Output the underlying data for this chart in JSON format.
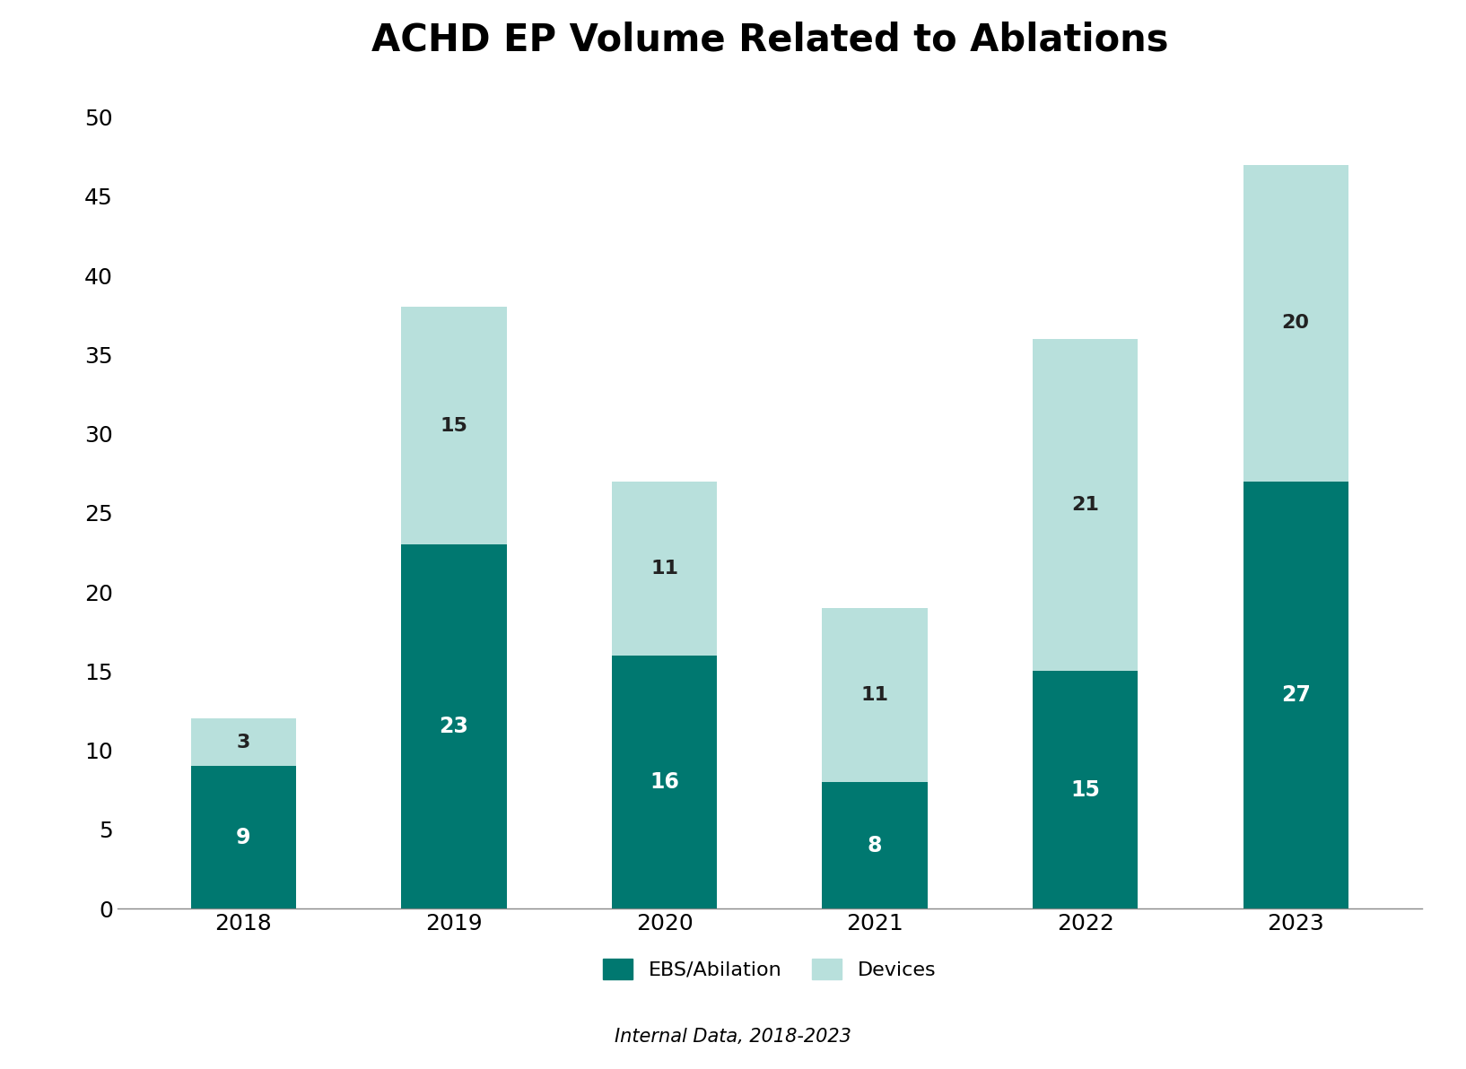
{
  "title": "ACHD EP Volume Related to Ablations",
  "years": [
    "2018",
    "2019",
    "2020",
    "2021",
    "2022",
    "2023"
  ],
  "ebs_values": [
    9,
    23,
    16,
    8,
    15,
    27
  ],
  "devices_values": [
    3,
    15,
    11,
    11,
    21,
    20
  ],
  "ebs_color": "#007870",
  "devices_color": "#b8e0dc",
  "background_color": "#ffffff",
  "ylabel_ticks": [
    0,
    5,
    10,
    15,
    20,
    25,
    30,
    35,
    40,
    45,
    50
  ],
  "legend_ebs_label": "EBS/Abilation",
  "legend_devices_label": "Devices",
  "footnote": "Internal Data, 2018-2023",
  "title_fontsize": 30,
  "tick_fontsize": 18,
  "bar_label_fontsize_ebs": 17,
  "bar_label_fontsize_dev": 16,
  "legend_fontsize": 16,
  "footnote_fontsize": 15,
  "bar_width": 0.5,
  "ylim": [
    0,
    52
  ]
}
